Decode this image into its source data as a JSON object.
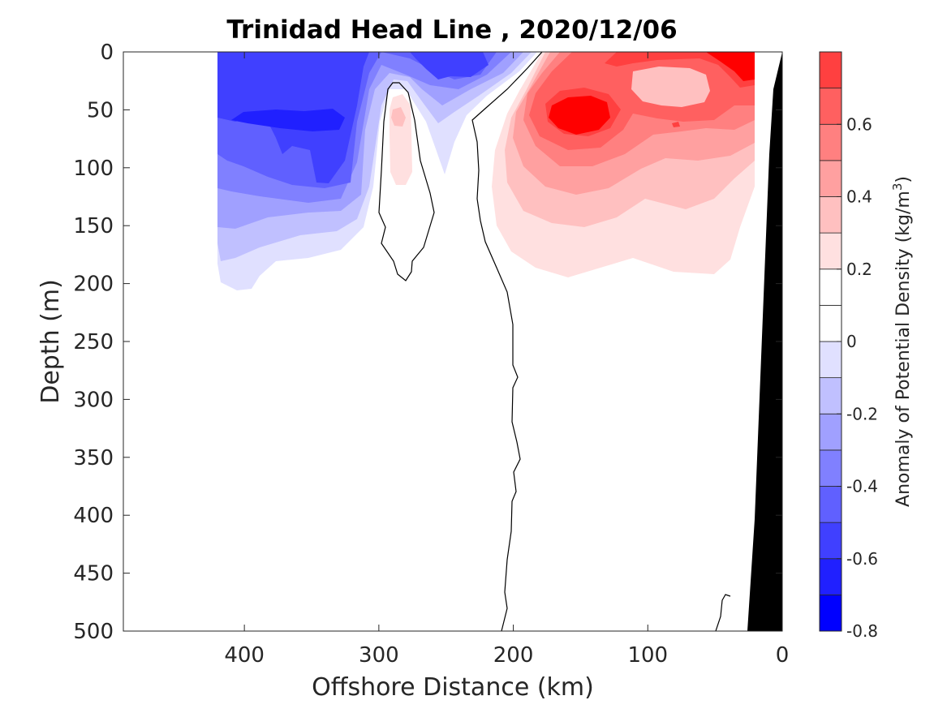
{
  "chart_data": {
    "type": "heatmap",
    "subtype": "filled-contour-section",
    "title": "Trinidad Head Line , 2020/12/06",
    "xlabel": "Offshore Distance (km)",
    "ylabel": "Depth (m)",
    "xlim": [
      490,
      0
    ],
    "x_reversed": true,
    "ylim": [
      0,
      500
    ],
    "y_reversed": true,
    "x_ticks": [
      400,
      300,
      200,
      100,
      0
    ],
    "y_ticks": [
      0,
      50,
      100,
      150,
      200,
      250,
      300,
      350,
      400,
      450,
      500
    ],
    "colorbar": {
      "label": "Anomaly of Potential Density (kg/m",
      "label_superscript": "3",
      "label_close": ")",
      "range": [
        -0.8,
        0.8
      ],
      "levels": [
        -0.8,
        -0.7,
        -0.6,
        -0.5,
        -0.4,
        -0.3,
        -0.2,
        -0.1,
        0.0,
        0.1,
        0.2,
        0.3,
        0.4,
        0.5,
        0.6,
        0.7,
        0.8
      ],
      "colors": [
        "#0000ff",
        "#2020ff",
        "#4040ff",
        "#6060ff",
        "#8080ff",
        "#a0a0ff",
        "#c0c0ff",
        "#e0e0ff",
        "#ffffff",
        "#ffffff",
        "#ffe0e0",
        "#ffc0c0",
        "#ffa0a0",
        "#ff8080",
        "#ff6060",
        "#ff4040",
        "#ff0000"
      ],
      "ticks": [
        0.6,
        0.4,
        0.2,
        0,
        -0.2,
        -0.4,
        -0.6,
        -0.8
      ],
      "tick_labels": [
        "0.6",
        "0.4",
        "0.2",
        "0",
        "-0.2",
        "-0.4",
        "-0.6",
        "-0.8"
      ]
    },
    "zero_contour_color": "#000000",
    "bathymetry_color": "#000000",
    "grid": false,
    "annotations": []
  }
}
